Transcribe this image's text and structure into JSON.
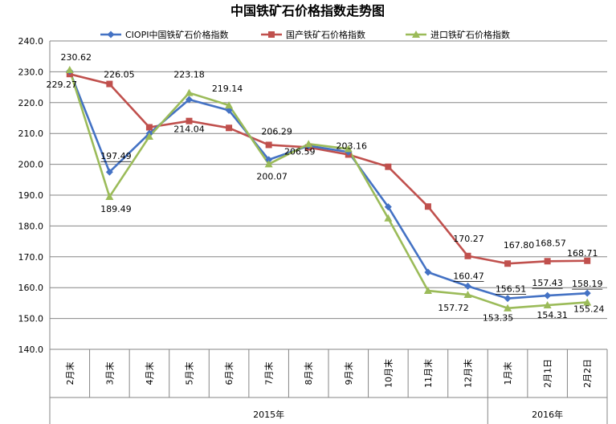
{
  "chart_data": {
    "type": "line",
    "title": "中国铁矿石价格指数走势图",
    "categories": [
      "2月末",
      "3月末",
      "4月末",
      "5月末",
      "6月末",
      "7月末",
      "8月末",
      "9月末",
      "10月末",
      "11月末",
      "12月末",
      "1月末",
      "2月1日",
      "2月2日"
    ],
    "year_groups": [
      {
        "label": "2015年",
        "start": 0,
        "end": 10
      },
      {
        "label": "2016年",
        "start": 11,
        "end": 13
      }
    ],
    "ylim": [
      140,
      240
    ],
    "yticks": [
      "140.0",
      "150.0",
      "160.0",
      "170.0",
      "180.0",
      "190.0",
      "200.0",
      "210.0",
      "220.0",
      "230.0",
      "240.0"
    ],
    "legend_position": "top",
    "series": [
      {
        "name": "CIOPI中国铁矿石价格指数",
        "color": "#4472C4",
        "marker": "diamond",
        "values": [
          230.2,
          197.49,
          210.0,
          221.0,
          217.5,
          201.5,
          206.0,
          204.0,
          186.2,
          165.0,
          160.47,
          156.51,
          157.43,
          158.19
        ]
      },
      {
        "name": "国产铁矿石价格指数",
        "color": "#C0504D",
        "marker": "square",
        "values": [
          229.27,
          226.05,
          212.0,
          214.04,
          211.8,
          206.29,
          205.5,
          203.16,
          199.2,
          186.3,
          170.27,
          167.8,
          168.57,
          168.71
        ]
      },
      {
        "name": "进口铁矿石价格指数",
        "color": "#9BBB59",
        "marker": "triangle",
        "values": [
          230.62,
          189.49,
          209.0,
          223.18,
          219.14,
          200.07,
          206.59,
          205.0,
          182.5,
          159.0,
          157.72,
          153.35,
          154.31,
          155.24
        ]
      }
    ],
    "data_labels": [
      {
        "text": "230.62",
        "series": 2,
        "index": 0,
        "dx": 8,
        "dy": -12,
        "underline": false
      },
      {
        "text": "229.27",
        "series": 1,
        "index": 0,
        "dx": -10,
        "dy": 17,
        "underline": false
      },
      {
        "text": "226.05",
        "series": 1,
        "index": 1,
        "dx": 12,
        "dy": -8,
        "underline": false
      },
      {
        "text": "197.49",
        "series": 0,
        "index": 1,
        "dx": 8,
        "dy": -16,
        "underline": true
      },
      {
        "text": "189.49",
        "series": 2,
        "index": 1,
        "dx": 8,
        "dy": 19,
        "underline": false
      },
      {
        "text": "223.18",
        "series": 2,
        "index": 3,
        "dx": 0,
        "dy": -19,
        "underline": false
      },
      {
        "text": "214.04",
        "series": 1,
        "index": 3,
        "dx": 0,
        "dy": 14,
        "underline": false
      },
      {
        "text": "219.14",
        "series": 2,
        "index": 4,
        "dx": -2,
        "dy": -17,
        "underline": false
      },
      {
        "text": "206.29",
        "series": 1,
        "index": 5,
        "dx": 10,
        "dy": -13,
        "underline": false
      },
      {
        "text": "200.07",
        "series": 2,
        "index": 5,
        "dx": 4,
        "dy": 19,
        "underline": false
      },
      {
        "text": "206.59",
        "series": 2,
        "index": 6,
        "dx": -11,
        "dy": 13,
        "underline": false
      },
      {
        "text": "203.16",
        "series": 1,
        "index": 7,
        "dx": 4,
        "dy": -7,
        "underline": false
      },
      {
        "text": "170.27",
        "series": 1,
        "index": 10,
        "dx": 1,
        "dy": -18,
        "underline": false
      },
      {
        "text": "160.47",
        "series": 0,
        "index": 10,
        "dx": 1,
        "dy": -9,
        "underline": true
      },
      {
        "text": "157.72",
        "series": 2,
        "index": 10,
        "dx": -18,
        "dy": 20,
        "underline": false
      },
      {
        "text": "167.80",
        "series": 1,
        "index": 11,
        "dx": 14,
        "dy": -19,
        "underline": false
      },
      {
        "text": "156.51",
        "series": 0,
        "index": 11,
        "dx": 4,
        "dy": -8,
        "underline": true
      },
      {
        "text": "153.35",
        "series": 2,
        "index": 11,
        "dx": -12,
        "dy": 16,
        "underline": false
      },
      {
        "text": "168.57",
        "series": 1,
        "index": 12,
        "dx": 4,
        "dy": -19,
        "underline": false
      },
      {
        "text": "157.43",
        "series": 0,
        "index": 12,
        "dx": 0,
        "dy": -12,
        "underline": true
      },
      {
        "text": "154.31",
        "series": 2,
        "index": 12,
        "dx": 6,
        "dy": 16,
        "underline": false
      },
      {
        "text": "168.71",
        "series": 1,
        "index": 13,
        "dx": -6,
        "dy": -6,
        "underline": false
      },
      {
        "text": "158.19",
        "series": 0,
        "index": 13,
        "dx": 0,
        "dy": -8,
        "underline": true
      },
      {
        "text": "155.24",
        "series": 2,
        "index": 13,
        "dx": 2,
        "dy": 12,
        "underline": false
      }
    ]
  }
}
